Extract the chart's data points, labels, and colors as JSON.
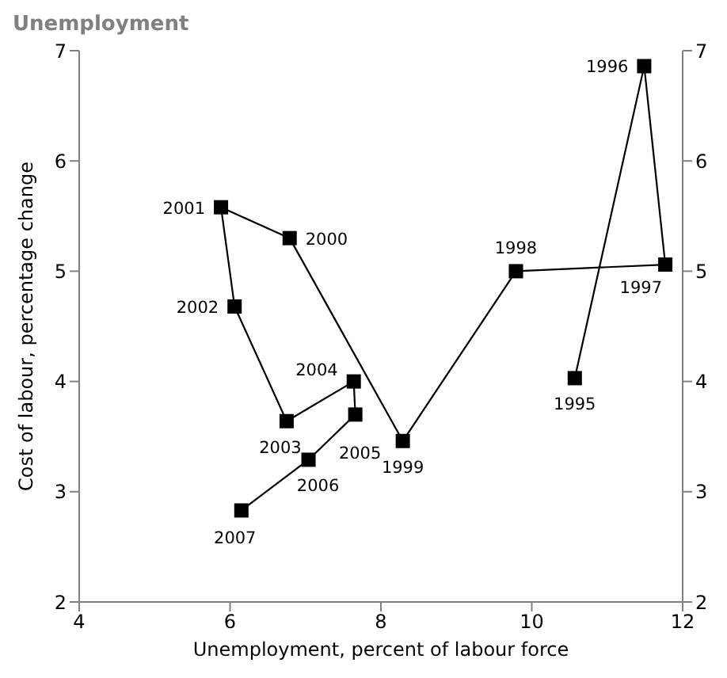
{
  "chart_data": {
    "type": "line",
    "title": "Unemployment",
    "xlabel": "Unemployment, percent of labour force",
    "ylabel": "Cost of labour, percentage change",
    "x": [
      10.57,
      11.49,
      11.77,
      9.79,
      8.29,
      6.79,
      5.88,
      6.06,
      6.75,
      7.64,
      7.66,
      7.04,
      6.15
    ],
    "series": [
      {
        "color": "#000000",
        "values": [
          4.03,
          6.86,
          5.06,
          5.0,
          3.46,
          5.3,
          5.58,
          4.68,
          3.64,
          4.0,
          3.7,
          3.29,
          2.83
        ]
      }
    ],
    "annotations": [
      {
        "text": "1995",
        "x": 10.57,
        "y": 4.03
      },
      {
        "text": "1996",
        "x": 11.49,
        "y": 6.86
      },
      {
        "text": "1997",
        "x": 11.77,
        "y": 5.06
      },
      {
        "text": "1998",
        "x": 9.79,
        "y": 5.0
      },
      {
        "text": "1999",
        "x": 8.29,
        "y": 3.46
      },
      {
        "text": "2000",
        "x": 6.79,
        "y": 5.3
      },
      {
        "text": "2001",
        "x": 5.88,
        "y": 5.58
      },
      {
        "text": "2002",
        "x": 6.06,
        "y": 4.68
      },
      {
        "text": "2003",
        "x": 6.75,
        "y": 3.64
      },
      {
        "text": "2004",
        "x": 7.64,
        "y": 4.0
      },
      {
        "text": "2005",
        "x": 7.66,
        "y": 3.7
      },
      {
        "text": "2006",
        "x": 7.04,
        "y": 3.29
      },
      {
        "text": "2007",
        "x": 6.15,
        "y": 2.83
      }
    ],
    "xlim": [
      4,
      12
    ],
    "xticks": [
      4,
      6,
      8,
      10,
      12
    ],
    "ylim": [
      2,
      7
    ],
    "yticks": [
      2,
      3,
      4,
      5,
      6,
      7
    ],
    "y2lim": [
      2,
      7
    ],
    "y2ticks": [
      2,
      3,
      4,
      5,
      6,
      7
    ],
    "grid": false,
    "legend": false,
    "marker": "square",
    "line_style": "solid"
  }
}
